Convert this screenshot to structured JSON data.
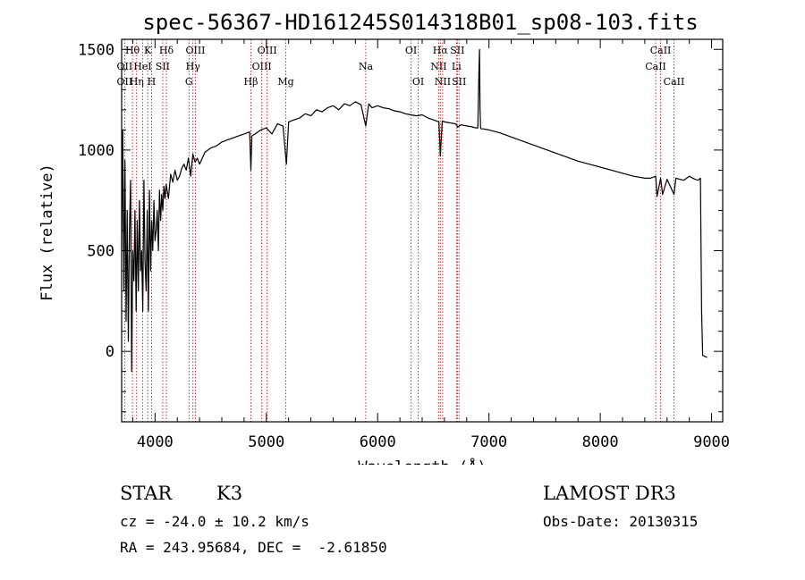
{
  "chart_data": {
    "type": "line",
    "title": "spec-56367-HD161245S014318B01_sp08-103.fits",
    "xlabel": "Wavelength (Å)",
    "ylabel": "Flux (relative)",
    "xlim": [
      3700,
      9100
    ],
    "ylim": [
      -350,
      1550
    ],
    "xticks": [
      4000,
      5000,
      6000,
      7000,
      8000,
      9000
    ],
    "yticks": [
      0,
      500,
      1000,
      1500
    ],
    "series": [
      {
        "name": "flux",
        "x": [
          3700,
          3710,
          3720,
          3730,
          3740,
          3750,
          3760,
          3770,
          3780,
          3790,
          3800,
          3810,
          3820,
          3830,
          3840,
          3850,
          3860,
          3870,
          3880,
          3890,
          3900,
          3910,
          3920,
          3930,
          3940,
          3950,
          3960,
          3970,
          3980,
          3990,
          4000,
          4010,
          4020,
          4030,
          4040,
          4050,
          4060,
          4070,
          4080,
          4090,
          4100,
          4120,
          4140,
          4160,
          4180,
          4200,
          4220,
          4240,
          4260,
          4280,
          4300,
          4320,
          4340,
          4360,
          4380,
          4400,
          4450,
          4500,
          4550,
          4600,
          4650,
          4700,
          4750,
          4800,
          4850,
          4861,
          4870,
          4900,
          4950,
          5000,
          5050,
          5100,
          5150,
          5180,
          5200,
          5250,
          5300,
          5350,
          5400,
          5450,
          5500,
          5550,
          5600,
          5650,
          5700,
          5750,
          5800,
          5850,
          5893,
          5920,
          5950,
          6000,
          6050,
          6100,
          6150,
          6200,
          6250,
          6300,
          6350,
          6400,
          6450,
          6500,
          6550,
          6563,
          6580,
          6600,
          6650,
          6700,
          6720,
          6750,
          6800,
          6850,
          6880,
          6900,
          6910,
          6915,
          6920,
          6925,
          6930,
          6950,
          7000,
          7100,
          7200,
          7300,
          7400,
          7500,
          7600,
          7700,
          7800,
          7900,
          8000,
          8100,
          8200,
          8300,
          8400,
          8450,
          8498,
          8510,
          8542,
          8560,
          8600,
          8662,
          8680,
          8750,
          8800,
          8850,
          8880,
          8900,
          8905,
          8910,
          8920,
          8960
        ],
        "y": [
          500,
          1100,
          300,
          950,
          150,
          700,
          50,
          600,
          850,
          -100,
          500,
          350,
          700,
          200,
          650,
          300,
          750,
          400,
          500,
          200,
          850,
          450,
          300,
          700,
          200,
          800,
          400,
          650,
          500,
          750,
          550,
          600,
          700,
          500,
          800,
          650,
          780,
          700,
          820,
          760,
          830,
          760,
          880,
          840,
          900,
          850,
          870,
          910,
          930,
          900,
          960,
          870,
          980,
          940,
          960,
          930,
          990,
          1010,
          1020,
          1040,
          1050,
          1060,
          1070,
          1080,
          1090,
          900,
          1070,
          1080,
          1100,
          1110,
          1080,
          1130,
          1120,
          930,
          1140,
          1150,
          1160,
          1180,
          1170,
          1200,
          1190,
          1210,
          1220,
          1200,
          1230,
          1220,
          1240,
          1225,
          1120,
          1230,
          1210,
          1220,
          1210,
          1205,
          1195,
          1190,
          1180,
          1175,
          1170,
          1175,
          1160,
          1150,
          1140,
          970,
          1145,
          1140,
          1135,
          1130,
          1115,
          1125,
          1120,
          1115,
          1110,
          1110,
          1400,
          1500,
          1200,
          1110,
          1105,
          1105,
          1100,
          1085,
          1065,
          1045,
          1025,
          1005,
          985,
          965,
          945,
          930,
          915,
          900,
          885,
          870,
          860,
          860,
          870,
          770,
          860,
          780,
          855,
          780,
          860,
          850,
          870,
          855,
          850,
          860,
          550,
          200,
          -20,
          -30
        ]
      }
    ],
    "lines": [
      {
        "label": "Hθ",
        "x": 3797,
        "row": 0
      },
      {
        "label": "K",
        "x": 3934,
        "row": 0
      },
      {
        "label": "Hδ",
        "x": 4102,
        "row": 0
      },
      {
        "label": "OII",
        "x": 3727,
        "row": 1
      },
      {
        "label": "HeI",
        "x": 3889,
        "row": 1
      },
      {
        "label": "SII",
        "x": 4069,
        "row": 1
      },
      {
        "label": "OII",
        "x": 3727,
        "row": 2
      },
      {
        "label": "Hη",
        "x": 3835,
        "row": 2
      },
      {
        "label": "H",
        "x": 3969,
        "row": 2
      },
      {
        "label": "OIII",
        "x": 4363,
        "row": 0
      },
      {
        "label": "Hγ",
        "x": 4341,
        "row": 1
      },
      {
        "label": "G",
        "x": 4305,
        "row": 2
      },
      {
        "label": "Hβ",
        "x": 4861,
        "row": 2
      },
      {
        "label": "OIII",
        "x": 5007,
        "row": 0
      },
      {
        "label": "OIII",
        "x": 4959,
        "row": 1
      },
      {
        "label": "Mg",
        "x": 5175,
        "row": 2
      },
      {
        "label": "Na",
        "x": 5893,
        "row": 1
      },
      {
        "label": "OI",
        "x": 6300,
        "row": 0
      },
      {
        "label": "OI",
        "x": 6364,
        "row": 2
      },
      {
        "label": "Hα",
        "x": 6563,
        "row": 0
      },
      {
        "label": "SII",
        "x": 6716,
        "row": 0
      },
      {
        "label": "NII",
        "x": 6548,
        "row": 1
      },
      {
        "label": "Li",
        "x": 6708,
        "row": 1
      },
      {
        "label": "NII",
        "x": 6584,
        "row": 2
      },
      {
        "label": "SII",
        "x": 6731,
        "row": 2
      },
      {
        "label": "CaII",
        "x": 8542,
        "row": 0
      },
      {
        "label": "CaII",
        "x": 8498,
        "row": 1
      },
      {
        "label": "CaII",
        "x": 8662,
        "row": 2
      }
    ]
  },
  "info": {
    "object_class": "STAR",
    "subclass": "K3",
    "survey": "LAMOST DR3",
    "redshift_line": "cz = -24.0 ± 10.2 km/s",
    "obs_date_line": "Obs-Date: 20130315",
    "coords_line": "RA = 243.95684, DEC =  -2.61850"
  },
  "colors": {
    "spectrum": "#000000",
    "line_marker": "#cc0000",
    "axes": "#000000"
  }
}
